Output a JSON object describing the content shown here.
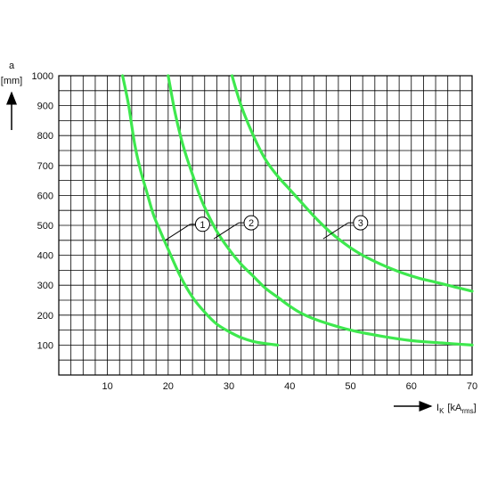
{
  "chart_data": {
    "type": "line",
    "title": "",
    "x_axis": {
      "label_main": "I",
      "label_sub": "K",
      "label_unit_open": "[kA",
      "label_unit_sub": "rms",
      "label_unit_close": "]",
      "range": [
        2,
        70
      ],
      "ticks": [
        10,
        20,
        30,
        40,
        50,
        60,
        70
      ],
      "tick_labels": [
        "10",
        "20",
        "30",
        "40",
        "50",
        "60",
        "70"
      ],
      "minor_step": 2
    },
    "y_axis": {
      "label_line1": "a",
      "label_line2": "[mm]",
      "range": [
        0,
        1000
      ],
      "ticks": [
        100,
        200,
        300,
        400,
        500,
        600,
        700,
        800,
        900,
        1000
      ],
      "tick_labels": [
        "100",
        "200",
        "300",
        "400",
        "500",
        "600",
        "700",
        "800",
        "900",
        "1000"
      ],
      "minor_step": 50
    },
    "grid": true,
    "line_color": "#3ee84e",
    "series": [
      {
        "name": "1",
        "points": [
          [
            12.5,
            1000
          ],
          [
            13.5,
            900
          ],
          [
            14.5,
            770
          ],
          [
            15.5,
            680
          ],
          [
            16.5,
            610
          ],
          [
            17.5,
            540
          ],
          [
            18.5,
            490
          ],
          [
            20,
            420
          ],
          [
            22,
            330
          ],
          [
            24,
            260
          ],
          [
            26,
            210
          ],
          [
            28,
            170
          ],
          [
            30,
            145
          ],
          [
            32,
            125
          ],
          [
            34,
            112
          ],
          [
            36,
            105
          ],
          [
            38,
            100
          ]
        ],
        "callout": {
          "label": "1",
          "anchor": [
            19.5,
            450
          ]
        }
      },
      {
        "name": "2",
        "points": [
          [
            20,
            1000
          ],
          [
            21,
            890
          ],
          [
            22,
            800
          ],
          [
            23,
            730
          ],
          [
            24,
            670
          ],
          [
            25,
            610
          ],
          [
            26,
            560
          ],
          [
            28,
            480
          ],
          [
            30,
            420
          ],
          [
            32,
            370
          ],
          [
            34,
            330
          ],
          [
            36,
            290
          ],
          [
            38,
            260
          ],
          [
            40,
            230
          ],
          [
            42,
            205
          ],
          [
            45,
            180
          ],
          [
            50,
            150
          ],
          [
            55,
            130
          ],
          [
            60,
            115
          ],
          [
            65,
            107
          ],
          [
            70,
            100
          ]
        ],
        "callout": {
          "label": "2",
          "anchor": [
            27.5,
            455
          ]
        }
      },
      {
        "name": "3",
        "points": [
          [
            30.5,
            1000
          ],
          [
            32,
            900
          ],
          [
            34,
            800
          ],
          [
            36,
            720
          ],
          [
            38,
            665
          ],
          [
            40,
            620
          ],
          [
            42,
            575
          ],
          [
            44,
            530
          ],
          [
            46,
            490
          ],
          [
            48,
            455
          ],
          [
            50,
            425
          ],
          [
            52,
            400
          ],
          [
            55,
            370
          ],
          [
            58,
            345
          ],
          [
            61,
            325
          ],
          [
            64,
            310
          ],
          [
            67,
            295
          ],
          [
            70,
            280
          ]
        ],
        "callout": {
          "label": "3",
          "anchor": [
            45.5,
            455
          ]
        }
      }
    ]
  }
}
